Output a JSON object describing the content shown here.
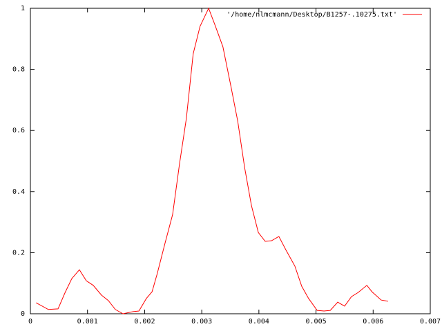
{
  "chart_data": {
    "type": "line",
    "series": [
      {
        "name": "'/home/nlmcmann/Desktop/B1257-.10275.txt'",
        "color": "#ff0000",
        "x": [
          0.0001,
          0.000314,
          0.000484,
          0.000604,
          0.000725,
          0.000858,
          0.000979,
          0.0011,
          0.001245,
          0.001366,
          0.001487,
          0.00162,
          0.0018,
          0.0019,
          0.00203,
          0.00213,
          0.00222,
          0.00235,
          0.00249,
          0.00261,
          0.00273,
          0.00285,
          0.00297,
          0.00312,
          0.00323,
          0.00337,
          0.00351,
          0.00363,
          0.00375,
          0.00387,
          0.00399,
          0.00411,
          0.00422,
          0.00435,
          0.00447,
          0.00463,
          0.00475,
          0.00487,
          0.00502,
          0.00514,
          0.00525,
          0.00538,
          0.0055,
          0.00562,
          0.00574,
          0.00589,
          0.00598,
          0.00614,
          0.00626
        ],
        "values": [
          0.036,
          0.014,
          0.016,
          0.068,
          0.115,
          0.144,
          0.108,
          0.093,
          0.061,
          0.043,
          0.014,
          0,
          0.007,
          0.009,
          0.05,
          0.072,
          0.131,
          0.226,
          0.325,
          0.49,
          0.639,
          0.851,
          0.941,
          1,
          0.946,
          0.874,
          0.745,
          0.63,
          0.479,
          0.354,
          0.266,
          0.237,
          0.239,
          0.253,
          0.21,
          0.156,
          0.09,
          0.05,
          0.011,
          0.009,
          0.011,
          0.038,
          0.025,
          0.056,
          0.07,
          0.093,
          0.072,
          0.045,
          0.041
        ]
      }
    ],
    "xlim": [
      0,
      0.007
    ],
    "xticks": [
      0,
      0.001,
      0.002,
      0.003,
      0.004,
      0.005,
      0.006,
      0.007
    ],
    "ylim": [
      0,
      1
    ],
    "yticks": [
      0,
      0.2,
      0.4,
      0.6,
      0.8,
      1
    ],
    "legend": "top-right"
  }
}
